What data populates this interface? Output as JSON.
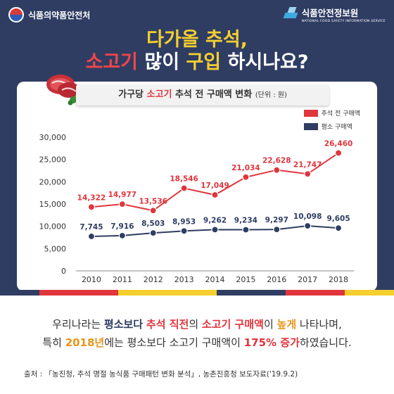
{
  "header": {
    "ministry": "식품의약품안전처",
    "institute": "식품안전정보원",
    "institute_en": "NATIONAL FOOD SAFETY INFORMATION SERVICE"
  },
  "headline": {
    "line1": "다가올 추석,",
    "line2_part1": "소고기",
    "line2_part2": " 많이 ",
    "line2_part3": "구입",
    "line2_part4": " 하시나요?"
  },
  "subtitle": {
    "part1": "가구당 ",
    "part2": "소고기",
    "part3": " 추석 전 구매액 변화 ",
    "unit": "(단위 : 원)"
  },
  "summary": {
    "line1": [
      {
        "t": "우리나라는 ",
        "s": ""
      },
      {
        "t": "평소보다",
        "s": "b"
      },
      {
        "t": " ",
        "s": ""
      },
      {
        "t": "추석 직전",
        "s": "r"
      },
      {
        "t": "의 ",
        "s": ""
      },
      {
        "t": "소고기 구매액",
        "s": "r"
      },
      {
        "t": "이 ",
        "s": ""
      },
      {
        "t": "높게",
        "s": "o"
      },
      {
        "t": " 나타나며,",
        "s": ""
      }
    ],
    "line2": [
      {
        "t": "특히 ",
        "s": ""
      },
      {
        "t": "2018년",
        "s": "o"
      },
      {
        "t": "에는 평소보다 소고기 구매액이 ",
        "s": ""
      },
      {
        "t": "175% 증가",
        "s": "r"
      },
      {
        "t": "하였습니다.",
        "s": ""
      }
    ]
  },
  "source": "출처 : 「농진청, 추석 명절 농식품 구매패턴 변화 분석」, 농촌진흥청 보도자료('19.9.2)",
  "colors": {
    "navy": "#2f3d63",
    "red": "#e0353c",
    "yellow": "#f5cf2e",
    "orange": "#e8941a"
  },
  "chart_data": {
    "type": "line",
    "x": [
      "2010",
      "2011",
      "2012",
      "2013",
      "2014",
      "2015",
      "2016",
      "2017",
      "2018"
    ],
    "series": [
      {
        "name": "추석 전 구매액",
        "color": "#e0353c",
        "values": [
          14322,
          14977,
          13536,
          18546,
          17049,
          21034,
          22628,
          21747,
          26460
        ]
      },
      {
        "name": "평소 구매액",
        "color": "#2f3d63",
        "values": [
          7745,
          7916,
          8503,
          8953,
          9262,
          9234,
          9297,
          10098,
          9605
        ]
      }
    ],
    "y_ticks": [
      0,
      5000,
      10000,
      15000,
      20000,
      25000,
      30000
    ],
    "ylim": [
      0,
      30000
    ],
    "legend_position": "top-right",
    "grid": false
  }
}
